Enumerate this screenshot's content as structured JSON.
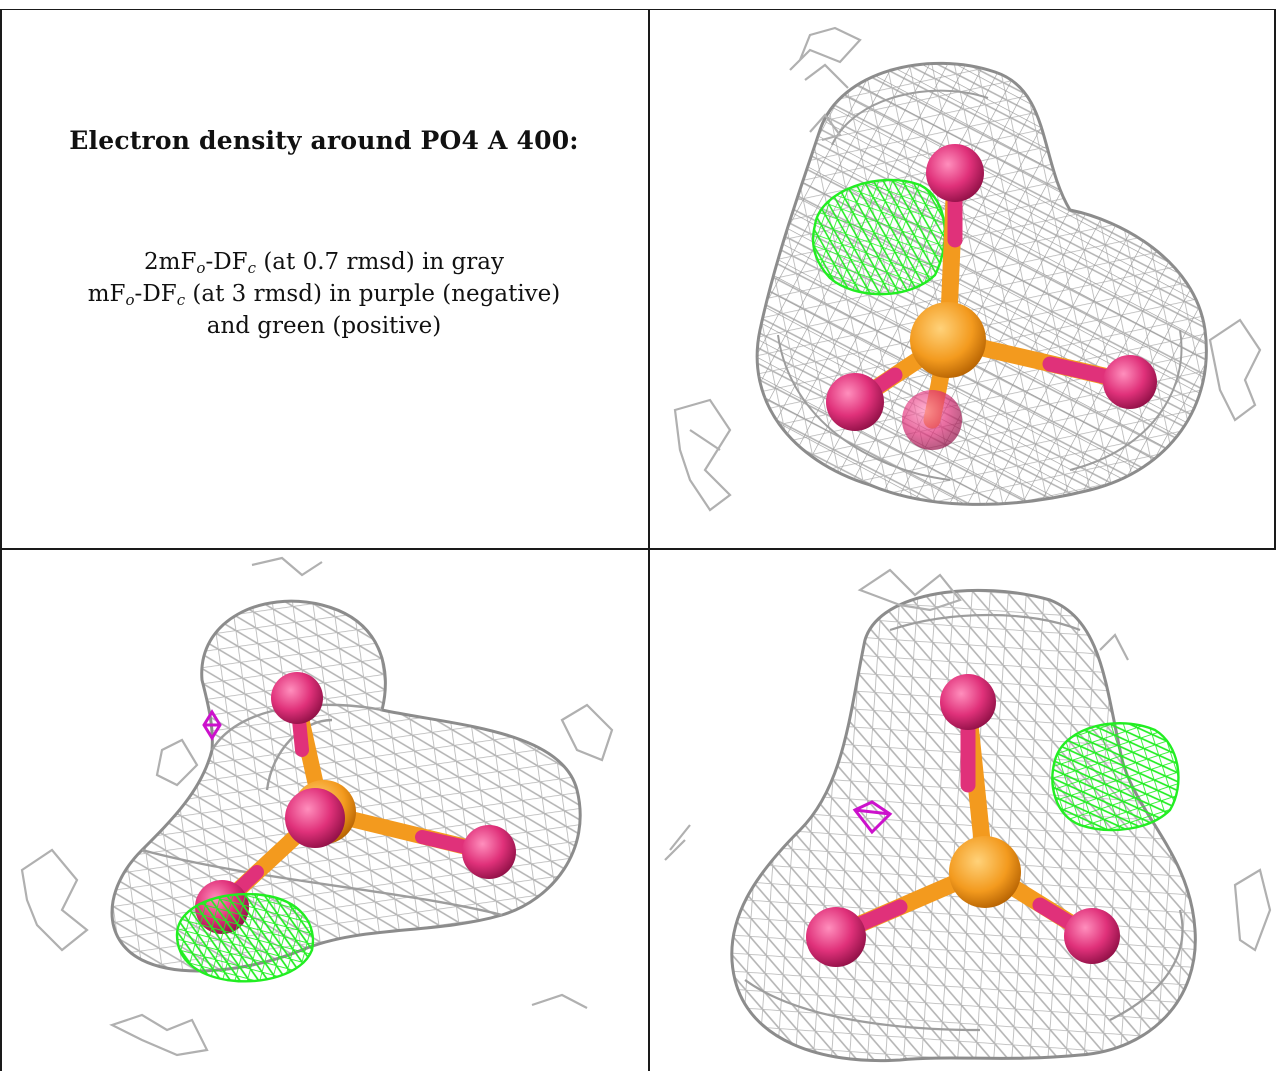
{
  "caption": {
    "title": "Electron density around PO4 A 400:",
    "line1": {
      "prefix": "2mF",
      "sub1": "o",
      "mid": "-DF",
      "sub2": "c",
      "suffix": " (at 0.7 rmsd) in gray"
    },
    "line2": {
      "prefix": "mF",
      "sub1": "o",
      "mid": "-DF",
      "sub2": "c",
      "suffix": " (at 3 rmsd) in purple (negative)"
    },
    "line3": "and green (positive)"
  },
  "colors": {
    "mesh_2fofc": "#b4b4b4",
    "mesh_positive": "#22ee22",
    "mesh_negative": "#cc11cc",
    "oxygen": "#e0317a",
    "phosphorus": "#f39a1e",
    "border": "#1a1a1a"
  },
  "views": [
    {
      "name": "view-top-right"
    },
    {
      "name": "view-bottom-left"
    },
    {
      "name": "view-bottom-right"
    }
  ]
}
